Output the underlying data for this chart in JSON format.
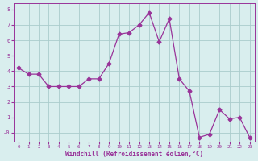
{
  "x": [
    0,
    1,
    2,
    3,
    4,
    5,
    6,
    7,
    8,
    9,
    10,
    11,
    12,
    13,
    14,
    15,
    16,
    17,
    18,
    19,
    20,
    21,
    22,
    23
  ],
  "y": [
    4.2,
    3.8,
    3.8,
    3.0,
    3.0,
    3.0,
    3.0,
    3.5,
    3.5,
    4.5,
    6.4,
    6.5,
    7.0,
    7.8,
    5.9,
    7.4,
    3.5,
    2.7,
    -0.3,
    -0.1,
    1.5,
    0.9,
    1.0,
    -0.3
  ],
  "line_color": "#993399",
  "marker": "D",
  "marker_size": 2.5,
  "bg_color": "#d9eeee",
  "grid_color": "#aacccc",
  "xlabel": "Windchill (Refroidissement éolien,°C)",
  "xlabel_color": "#993399",
  "tick_color": "#993399",
  "ylim": [
    -0.6,
    8.4
  ],
  "xlim": [
    -0.5,
    23.5
  ],
  "xtick_labels": [
    "0",
    "1",
    "2",
    "3",
    "4",
    "5",
    "6",
    "7",
    "8",
    "9",
    "10",
    "11",
    "12",
    "13",
    "14",
    "15",
    "16",
    "17",
    "18",
    "19",
    "20",
    "21",
    "22",
    "23"
  ],
  "ytick_vals": [
    0,
    1,
    2,
    3,
    4,
    5,
    6,
    7,
    8
  ],
  "ytick_labels": [
    "-0",
    "1",
    "2",
    "3",
    "4",
    "5",
    "6",
    "7",
    "8"
  ]
}
